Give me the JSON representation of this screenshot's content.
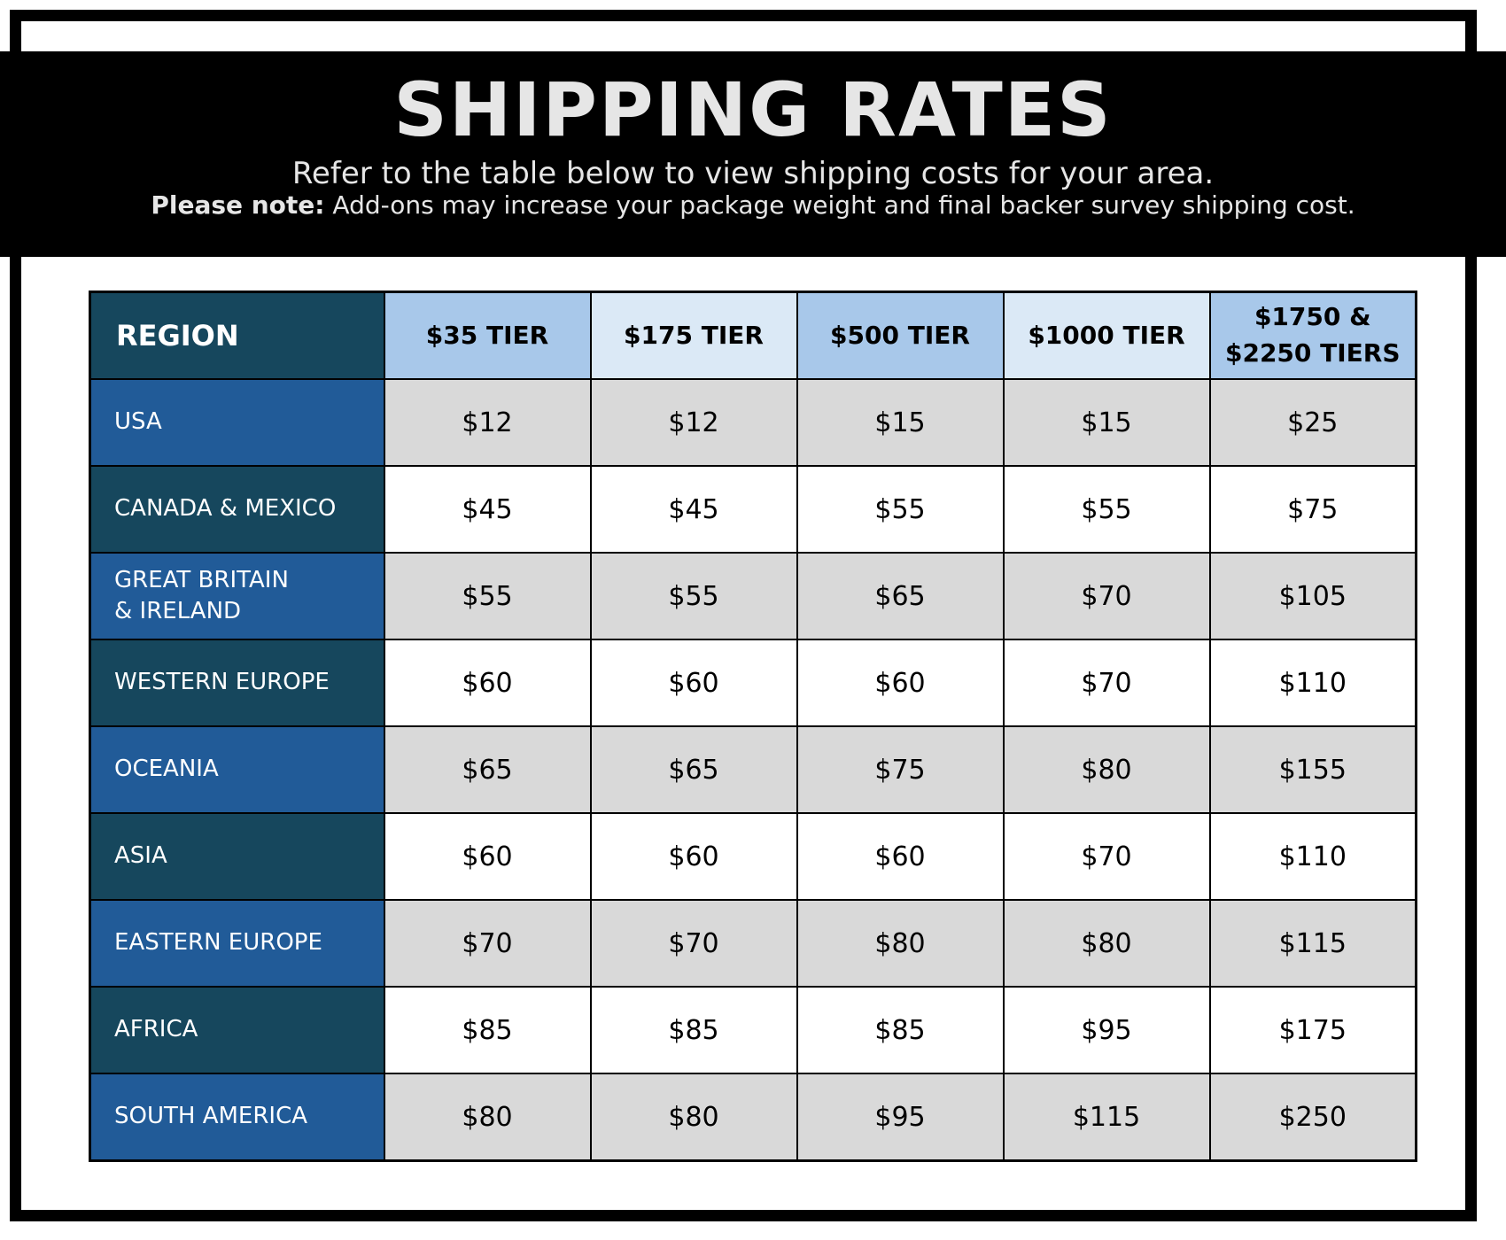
{
  "header": {
    "title": "SHIPPING RATES",
    "subtitle": "Refer to the table below to view shipping costs for your area.",
    "note_label": "Please note:",
    "note_text": " Add-ons may increase your package weight and final backer survey shipping cost."
  },
  "table": {
    "columns": [
      "REGION",
      "$35 TIER",
      "$175 TIER",
      "$500 TIER",
      "$1000 TIER",
      "$1750 &",
      "$2250 TIERS"
    ],
    "rows": [
      {
        "region": [
          "USA"
        ],
        "values": [
          "$12",
          "$12",
          "$15",
          "$15",
          "$25"
        ]
      },
      {
        "region": [
          "CANADA & MEXICO"
        ],
        "values": [
          "$45",
          "$45",
          "$55",
          "$55",
          "$75"
        ]
      },
      {
        "region": [
          "GREAT BRITAIN",
          "& IRELAND"
        ],
        "values": [
          "$55",
          "$55",
          "$65",
          "$70",
          "$105"
        ]
      },
      {
        "region": [
          "WESTERN EUROPE"
        ],
        "values": [
          "$60",
          "$60",
          "$60",
          "$70",
          "$110"
        ]
      },
      {
        "region": [
          "OCEANIA"
        ],
        "values": [
          "$65",
          "$65",
          "$75",
          "$80",
          "$155"
        ]
      },
      {
        "region": [
          "ASIA"
        ],
        "values": [
          "$60",
          "$60",
          "$60",
          "$70",
          "$110"
        ]
      },
      {
        "region": [
          "EASTERN EUROPE"
        ],
        "values": [
          "$70",
          "$70",
          "$80",
          "$80",
          "$115"
        ]
      },
      {
        "region": [
          "AFRICA"
        ],
        "values": [
          "$85",
          "$85",
          "$85",
          "$95",
          "$175"
        ]
      },
      {
        "region": [
          "SOUTH AMERICA"
        ],
        "values": [
          "$80",
          "$80",
          "$95",
          "$115",
          "$250"
        ]
      }
    ]
  },
  "colors": {
    "banner": "#000000",
    "region_dark": "#16475d",
    "region_blue": "#215b98",
    "tier_header_dark": "#a8c8ea",
    "tier_header_light": "#dbe9f6",
    "row_gray": "#d9d9d9"
  }
}
